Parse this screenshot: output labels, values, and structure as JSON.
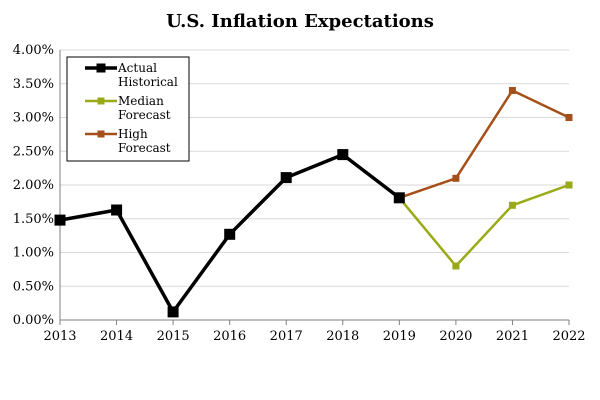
{
  "chart_data": {
    "type": "line",
    "title": "U.S. Inflation Expectations",
    "xlabel": "",
    "ylabel": "",
    "x": [
      2013,
      2014,
      2015,
      2016,
      2017,
      2018,
      2019,
      2020,
      2021,
      2022
    ],
    "x_tick_labels": [
      "2013",
      "2014",
      "2015",
      "2016",
      "2017",
      "2018",
      "2019",
      "2020",
      "2021",
      "2022"
    ],
    "ylim": [
      0,
      0.04
    ],
    "y_ticks": [
      0,
      0.005,
      0.01,
      0.015,
      0.02,
      0.025,
      0.03,
      0.035,
      0.04
    ],
    "y_tick_labels": [
      "0.00%",
      "0.50%",
      "1.00%",
      "1.50%",
      "2.00%",
      "2.50%",
      "3.00%",
      "3.50%",
      "4.00%"
    ],
    "grid": true,
    "legend_position": "top-left",
    "series": [
      {
        "name": "Actual Historical",
        "legend_lines": [
          "Actual",
          "Historical"
        ],
        "color": "#000000",
        "x": [
          2013,
          2014,
          2015,
          2016,
          2017,
          2018,
          2019
        ],
        "values": [
          0.0148,
          0.0163,
          0.0012,
          0.0127,
          0.0211,
          0.0245,
          0.0181
        ]
      },
      {
        "name": "Median Forecast",
        "legend_lines": [
          "Median",
          "Forecast"
        ],
        "color": "#9aaa16",
        "x": [
          2019,
          2020,
          2021,
          2022
        ],
        "values": [
          0.0181,
          0.008,
          0.017,
          0.02
        ]
      },
      {
        "name": "High Forecast",
        "legend_lines": [
          "High",
          "Forecast"
        ],
        "color": "#a5501a",
        "x": [
          2019,
          2020,
          2021,
          2022
        ],
        "values": [
          0.0181,
          0.021,
          0.034,
          0.03
        ]
      }
    ]
  }
}
